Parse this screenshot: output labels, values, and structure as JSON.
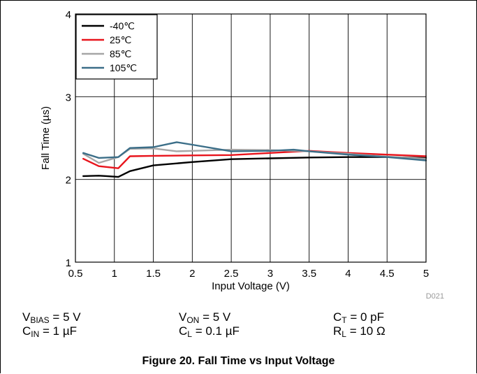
{
  "conditions": {
    "vbias": {
      "sym": "V",
      "sub": "BIAS",
      "val": " = 5 V"
    },
    "von": {
      "sym": "V",
      "sub": "ON",
      "val": " = 5 V"
    },
    "ct": {
      "sym": "C",
      "sub": "T",
      "val": " = 0 pF"
    },
    "cin": {
      "sym": "C",
      "sub": "IN",
      "val": " = 1 µF"
    },
    "cl": {
      "sym": "C",
      "sub": "L",
      "val": " = 0.1 µF"
    },
    "rl": {
      "sym": "R",
      "sub": "L",
      "val": " = 10 Ω"
    }
  },
  "caption": "Figure 20. Fall Time vs Input Voltage",
  "chart_data": {
    "type": "line",
    "xlabel": "Input Voltage (V)",
    "ylabel": "Fall Time (µs)",
    "xlim": [
      0.5,
      5
    ],
    "ylim": [
      1,
      4
    ],
    "xticks": [
      0.5,
      1,
      1.5,
      2,
      2.5,
      3,
      3.5,
      4,
      4.5,
      5
    ],
    "xtick_labels": [
      "0.5",
      "1",
      "1.5",
      "2",
      "2.5",
      "3",
      "3.5",
      "4",
      "4.5",
      "5"
    ],
    "yticks": [
      1,
      2,
      3,
      4
    ],
    "ytick_labels": [
      "1",
      "2",
      "3",
      "4"
    ],
    "grid": true,
    "legend_position": "top-left",
    "code": "D021",
    "series": [
      {
        "name": "-40℃",
        "color": "#000000",
        "x": [
          0.6,
          0.8,
          0.9,
          1.05,
          1.2,
          1.5,
          2,
          2.5,
          3,
          3.5,
          4,
          4.5,
          5
        ],
        "y": [
          2.04,
          2.045,
          2.04,
          2.03,
          2.1,
          2.17,
          2.21,
          2.245,
          2.255,
          2.265,
          2.27,
          2.27,
          2.26
        ]
      },
      {
        "name": "25℃",
        "color": "#e8141c",
        "x": [
          0.6,
          0.8,
          1.05,
          1.2,
          1.5,
          2,
          2.5,
          3,
          3.5,
          4,
          4.5,
          5
        ],
        "y": [
          2.25,
          2.16,
          2.135,
          2.28,
          2.285,
          2.29,
          2.295,
          2.32,
          2.345,
          2.32,
          2.3,
          2.28
        ]
      },
      {
        "name": "85℃",
        "color": "#a6a6a6",
        "x": [
          0.6,
          0.8,
          1.05,
          1.2,
          1.5,
          1.8,
          2,
          2.5,
          3,
          3.5,
          4,
          4.5,
          5
        ],
        "y": [
          2.31,
          2.2,
          2.27,
          2.37,
          2.375,
          2.34,
          2.345,
          2.36,
          2.355,
          2.34,
          2.31,
          2.275,
          2.25
        ]
      },
      {
        "name": "105℃",
        "color": "#3b6e88",
        "x": [
          0.6,
          0.8,
          1.05,
          1.2,
          1.5,
          1.8,
          2,
          2.5,
          3,
          3.3,
          3.5,
          4,
          4.5,
          5
        ],
        "y": [
          2.32,
          2.26,
          2.27,
          2.38,
          2.39,
          2.45,
          2.42,
          2.34,
          2.345,
          2.36,
          2.34,
          2.3,
          2.27,
          2.23
        ]
      }
    ]
  }
}
